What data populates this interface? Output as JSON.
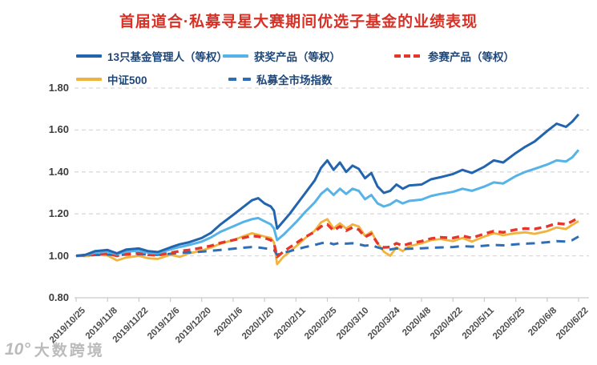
{
  "title": {
    "text": "首届道合·私募寻星大赛期间优选子基金的业绩表现",
    "color": "#D93025"
  },
  "watermark": {
    "logo": "10°",
    "text": "大数跨境"
  },
  "chart_data": {
    "type": "line",
    "title": "首届道合·私募寻星大赛期间优选子基金的业绩表现",
    "xlabel": "",
    "ylabel": "",
    "ylim": [
      0.8,
      1.8
    ],
    "y_tick_step": 0.2,
    "grid": "horizontal-dashed",
    "legend_position": "top",
    "y_axis": {
      "tick_labels": [
        "1.80",
        "1.60",
        "1.40",
        "1.20",
        "1.00",
        "0.80"
      ]
    },
    "x_axis": {
      "tick_labels": [
        "2019/10/25",
        "2019/11/8",
        "2019/11/22",
        "2019/12/6",
        "2019/12/20",
        "2020/1/6",
        "2020/1/20",
        "2020/2/11",
        "2020/2/25",
        "2020/3/10",
        "2020/3/24",
        "2020/4/8",
        "2020/4/22",
        "2020/5/11",
        "2020/5/25",
        "2020/6/8",
        "2020/6/22"
      ],
      "tick_indices": [
        0,
        10,
        20,
        30,
        40,
        50,
        60,
        70,
        80,
        90,
        100,
        110,
        120,
        130,
        140,
        150,
        160
      ],
      "unit": "trading-day index"
    },
    "x": [
      0,
      3,
      6,
      10,
      13,
      16,
      20,
      23,
      26,
      30,
      33,
      36,
      40,
      43,
      46,
      50,
      53,
      56,
      58,
      60,
      62,
      63,
      64,
      66,
      68,
      70,
      73,
      76,
      78,
      80,
      82,
      84,
      86,
      88,
      90,
      92,
      94,
      96,
      98,
      100,
      102,
      104,
      106,
      110,
      113,
      116,
      120,
      123,
      126,
      130,
      133,
      136,
      140,
      143,
      146,
      150,
      153,
      156,
      158,
      160
    ],
    "series": [
      {
        "key": "managers",
        "name": "13只基金管理人（等权）",
        "color": "#2265AE",
        "style": "solid",
        "values": [
          1.0,
          1.005,
          1.022,
          1.028,
          1.012,
          1.03,
          1.035,
          1.022,
          1.018,
          1.04,
          1.055,
          1.065,
          1.085,
          1.11,
          1.15,
          1.195,
          1.23,
          1.265,
          1.275,
          1.25,
          1.235,
          1.215,
          1.13,
          1.165,
          1.2,
          1.24,
          1.3,
          1.36,
          1.42,
          1.455,
          1.41,
          1.445,
          1.4,
          1.43,
          1.415,
          1.37,
          1.395,
          1.33,
          1.3,
          1.31,
          1.34,
          1.32,
          1.335,
          1.34,
          1.365,
          1.375,
          1.39,
          1.41,
          1.395,
          1.425,
          1.455,
          1.445,
          1.49,
          1.52,
          1.545,
          1.595,
          1.63,
          1.615,
          1.64,
          1.675
        ]
      },
      {
        "key": "winners",
        "name": "获奖产品（等权）",
        "color": "#56B3E7",
        "style": "solid",
        "values": [
          1.0,
          1.003,
          1.015,
          1.02,
          1.008,
          1.02,
          1.025,
          1.015,
          1.012,
          1.03,
          1.042,
          1.052,
          1.068,
          1.088,
          1.115,
          1.14,
          1.16,
          1.175,
          1.18,
          1.165,
          1.15,
          1.13,
          1.075,
          1.1,
          1.13,
          1.16,
          1.21,
          1.255,
          1.295,
          1.32,
          1.29,
          1.32,
          1.295,
          1.32,
          1.31,
          1.27,
          1.29,
          1.25,
          1.235,
          1.245,
          1.265,
          1.25,
          1.262,
          1.268,
          1.285,
          1.295,
          1.305,
          1.32,
          1.31,
          1.33,
          1.35,
          1.345,
          1.38,
          1.4,
          1.415,
          1.435,
          1.455,
          1.45,
          1.47,
          1.505
        ]
      },
      {
        "key": "contestants",
        "name": "参赛产品（等权）",
        "color": "#E6352A",
        "style": "dashed",
        "values": [
          1.0,
          1.002,
          1.008,
          1.01,
          1.0,
          1.008,
          1.012,
          1.005,
          1.002,
          1.015,
          1.022,
          1.028,
          1.038,
          1.048,
          1.062,
          1.075,
          1.085,
          1.095,
          1.092,
          1.085,
          1.075,
          1.06,
          0.995,
          1.02,
          1.04,
          1.06,
          1.09,
          1.115,
          1.14,
          1.15,
          1.12,
          1.14,
          1.12,
          1.135,
          1.125,
          1.09,
          1.105,
          1.06,
          1.04,
          1.042,
          1.06,
          1.048,
          1.058,
          1.07,
          1.082,
          1.088,
          1.085,
          1.095,
          1.085,
          1.105,
          1.118,
          1.112,
          1.125,
          1.13,
          1.128,
          1.14,
          1.155,
          1.15,
          1.165,
          1.182
        ]
      },
      {
        "key": "csi500",
        "name": "中证500",
        "color": "#F2B33C",
        "style": "solid",
        "values": [
          1.0,
          0.998,
          1.005,
          1.002,
          0.978,
          0.992,
          1.0,
          0.988,
          0.985,
          1.005,
          0.995,
          1.012,
          1.025,
          1.04,
          1.058,
          1.075,
          1.092,
          1.108,
          1.1,
          1.092,
          1.085,
          1.065,
          0.96,
          0.995,
          1.02,
          1.045,
          1.085,
          1.12,
          1.16,
          1.175,
          1.13,
          1.155,
          1.13,
          1.15,
          1.14,
          1.095,
          1.115,
          1.06,
          1.02,
          1.0,
          1.04,
          1.022,
          1.045,
          1.06,
          1.075,
          1.08,
          1.07,
          1.085,
          1.068,
          1.092,
          1.108,
          1.098,
          1.108,
          1.112,
          1.105,
          1.118,
          1.135,
          1.128,
          1.148,
          1.165
        ]
      },
      {
        "key": "market-index",
        "name": "私募全市场指数",
        "color": "#2E6DB7",
        "style": "dashed",
        "values": [
          1.0,
          1.001,
          1.004,
          1.006,
          1.003,
          1.006,
          1.008,
          1.006,
          1.005,
          1.01,
          1.014,
          1.016,
          1.02,
          1.024,
          1.028,
          1.034,
          1.038,
          1.042,
          1.04,
          1.036,
          1.032,
          1.028,
          1.005,
          1.015,
          1.022,
          1.03,
          1.042,
          1.052,
          1.06,
          1.065,
          1.055,
          1.062,
          1.058,
          1.06,
          1.055,
          1.048,
          1.052,
          1.04,
          1.032,
          1.03,
          1.035,
          1.032,
          1.034,
          1.036,
          1.038,
          1.04,
          1.042,
          1.046,
          1.044,
          1.048,
          1.052,
          1.05,
          1.055,
          1.058,
          1.06,
          1.065,
          1.07,
          1.068,
          1.075,
          1.092
        ]
      }
    ]
  }
}
